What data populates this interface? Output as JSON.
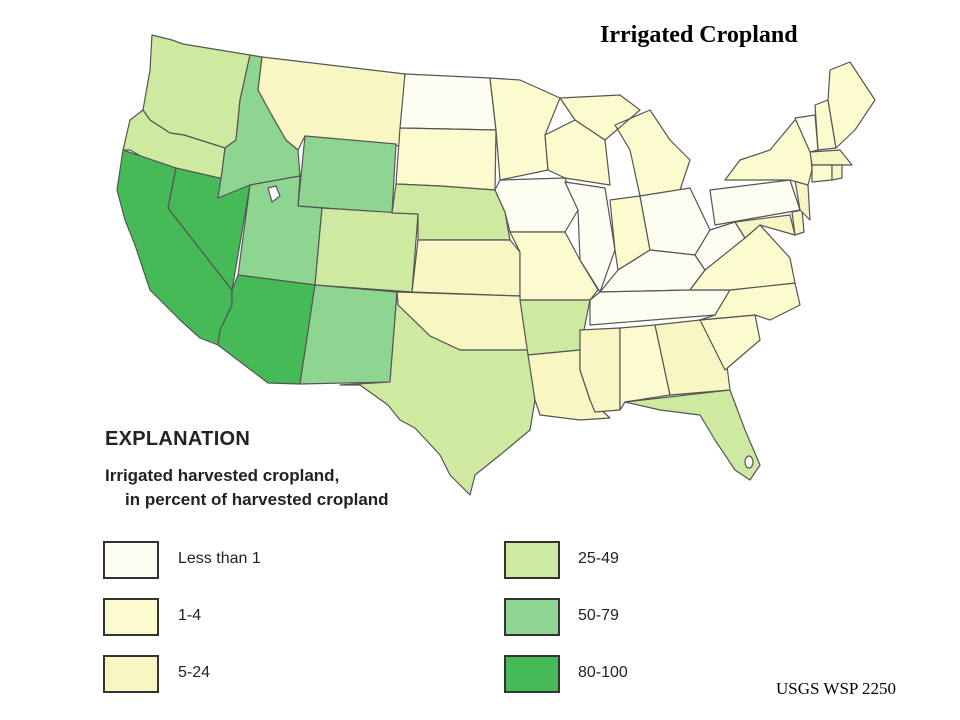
{
  "title": "Irrigated Cropland",
  "source": "USGS WSP 2250",
  "explanation": {
    "heading": "EXPLANATION",
    "subtitle_line1": "Irrigated harvested cropland,",
    "subtitle_line2": "in percent of harvested cropland"
  },
  "legend": [
    {
      "label": "Less than 1",
      "color": "#fdfdf2"
    },
    {
      "label": "1-4",
      "color": "#fbfbce"
    },
    {
      "label": "5-24",
      "color": "#f8f6c2"
    },
    {
      "label": "25-49",
      "color": "#cdeaa0"
    },
    {
      "label": "50-79",
      "color": "#8fd592"
    },
    {
      "label": "80-100",
      "color": "#45ba56"
    }
  ],
  "map": {
    "region": "United States (conterminous)",
    "classes": {
      "less_than_1": "#fdfdf2",
      "1-4": "#fbfbce",
      "5-24": "#f8f6c2",
      "25-49": "#cdeaa0",
      "50-79": "#8fd592",
      "80-100": "#45ba56"
    },
    "states": [
      {
        "name": "Washington",
        "class": "25-49"
      },
      {
        "name": "Oregon",
        "class": "25-49"
      },
      {
        "name": "California",
        "class": "80-100"
      },
      {
        "name": "Nevada",
        "class": "80-100"
      },
      {
        "name": "Arizona",
        "class": "80-100"
      },
      {
        "name": "Idaho",
        "class": "50-79"
      },
      {
        "name": "Utah",
        "class": "50-79"
      },
      {
        "name": "Wyoming",
        "class": "50-79"
      },
      {
        "name": "New Mexico",
        "class": "50-79"
      },
      {
        "name": "Montana",
        "class": "5-24"
      },
      {
        "name": "Colorado",
        "class": "25-49"
      },
      {
        "name": "Nebraska",
        "class": "25-49"
      },
      {
        "name": "Texas",
        "class": "25-49"
      },
      {
        "name": "Arkansas",
        "class": "25-49"
      },
      {
        "name": "Florida",
        "class": "25-49"
      },
      {
        "name": "North Dakota",
        "class": "less_than_1"
      },
      {
        "name": "South Dakota",
        "class": "1-4"
      },
      {
        "name": "Kansas",
        "class": "5-24"
      },
      {
        "name": "Oklahoma",
        "class": "5-24"
      },
      {
        "name": "Iowa",
        "class": "less_than_1"
      },
      {
        "name": "Illinois",
        "class": "less_than_1"
      },
      {
        "name": "Ohio",
        "class": "less_than_1"
      },
      {
        "name": "Pennsylvania",
        "class": "less_than_1"
      },
      {
        "name": "Kentucky",
        "class": "less_than_1"
      },
      {
        "name": "Tennessee",
        "class": "less_than_1"
      },
      {
        "name": "West Virginia",
        "class": "less_than_1"
      },
      {
        "name": "Minnesota",
        "class": "1-4"
      },
      {
        "name": "Wisconsin",
        "class": "1-4"
      },
      {
        "name": "Michigan",
        "class": "1-4"
      },
      {
        "name": "Missouri",
        "class": "1-4"
      },
      {
        "name": "Indiana",
        "class": "1-4"
      },
      {
        "name": "Louisiana",
        "class": "5-24"
      },
      {
        "name": "Mississippi",
        "class": "5-24"
      },
      {
        "name": "Alabama",
        "class": "1-4"
      },
      {
        "name": "Georgia",
        "class": "5-24"
      },
      {
        "name": "South Carolina",
        "class": "1-4"
      },
      {
        "name": "North Carolina",
        "class": "1-4"
      },
      {
        "name": "Virginia",
        "class": "1-4"
      },
      {
        "name": "Maryland",
        "class": "5-24"
      },
      {
        "name": "Delaware",
        "class": "5-24"
      },
      {
        "name": "New Jersey",
        "class": "5-24"
      },
      {
        "name": "New York",
        "class": "1-4"
      },
      {
        "name": "Vermont",
        "class": "less_than_1"
      },
      {
        "name": "New Hampshire",
        "class": "1-4"
      },
      {
        "name": "Maine",
        "class": "1-4"
      },
      {
        "name": "Massachusetts",
        "class": "5-24"
      },
      {
        "name": "Connecticut",
        "class": "1-4"
      },
      {
        "name": "Rhode Island",
        "class": "5-24"
      }
    ]
  }
}
